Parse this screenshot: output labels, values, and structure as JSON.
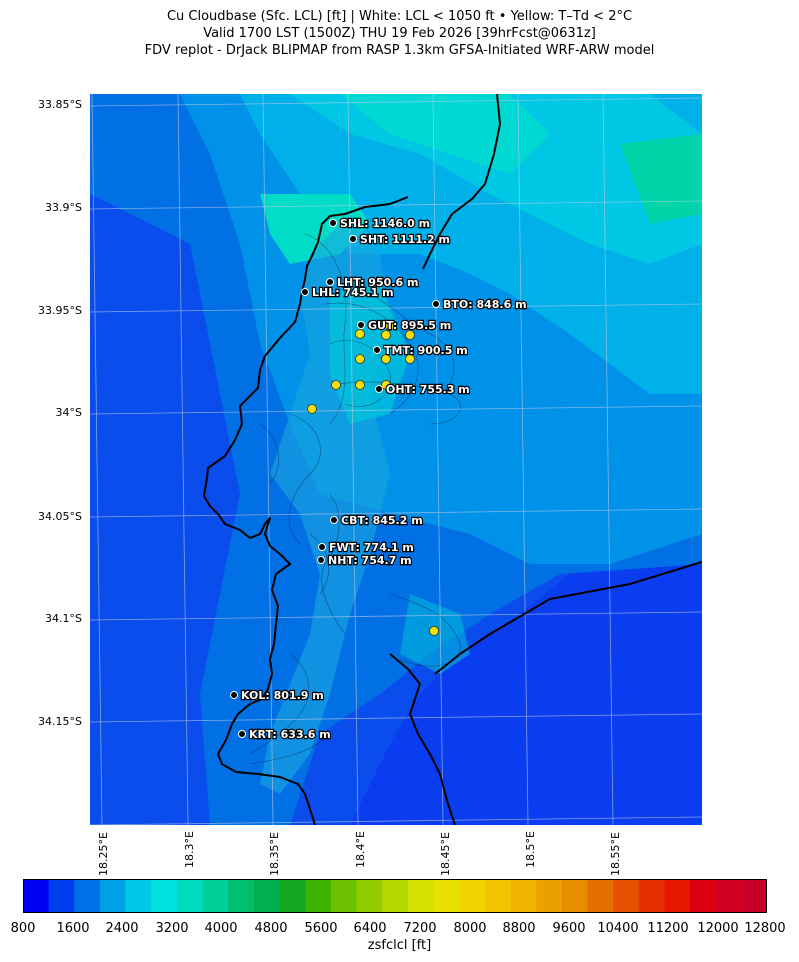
{
  "title": {
    "line1": "Cu Cloudbase (Sfc. LCL) [ft]  |  White: LCL < 1050 ft • Yellow: T–Td < 2°C",
    "line2": "Valid 1700 LST (1500Z) THU 19 Feb 2026 [39hrFcst@0631z]",
    "line3": "FDV replot - DrJack BLIPMAP from RASP 1.3km GFSA-Initiated WRF-ARW model"
  },
  "map": {
    "lat_labels": [
      "33.85°S",
      "33.9°S",
      "33.95°S",
      "34°S",
      "34.05°S",
      "34.1°S",
      "34.15°S"
    ],
    "lon_labels": [
      "18.25°E",
      "18.3°E",
      "18.35°E",
      "18.4°E",
      "18.45°E",
      "18.5°E",
      "18.55°E"
    ],
    "stations": [
      {
        "label": "SHL: 1146.0 m"
      },
      {
        "label": "SHT: 1111.2 m"
      },
      {
        "label": "LHT: 950.6 m"
      },
      {
        "label": "LHL: 745.1 m"
      },
      {
        "label": "BTO: 848.6 m"
      },
      {
        "label": "GUT: 895.5 m"
      },
      {
        "label": "TMT: 900.5 m"
      },
      {
        "label": "OHT: 755.3 m"
      },
      {
        "label": "CBT: 845.2 m"
      },
      {
        "label": "FWT: 774.1 m"
      },
      {
        "label": "NHT: 754.7 m"
      },
      {
        "label": "KOL: 801.9 m"
      },
      {
        "label": "KRT: 633.6 m"
      }
    ],
    "yellow_marker_count": 12
  },
  "colorbar": {
    "label": "zsfclcl [ft]",
    "tick_labels": [
      "800",
      "1600",
      "2400",
      "3200",
      "4000",
      "4800",
      "5600",
      "6400",
      "7200",
      "8000",
      "8800",
      "9600",
      "10400",
      "11200",
      "12000",
      "12800"
    ],
    "colors": [
      "#0000f0",
      "#0040ec",
      "#0070e6",
      "#00a0e6",
      "#00c8e8",
      "#00e0dc",
      "#00dcc0",
      "#00d098",
      "#00c070",
      "#00b050",
      "#14a820",
      "#3cb400",
      "#6cc000",
      "#90cc00",
      "#b4d800",
      "#d4e000",
      "#e8e000",
      "#f0d400",
      "#f0c400",
      "#f0b400",
      "#eca000",
      "#e88c00",
      "#e47000",
      "#e45000",
      "#e43000",
      "#e41800",
      "#dc0010",
      "#d00020",
      "#c80028"
    ],
    "range": [
      800,
      12800
    ]
  }
}
